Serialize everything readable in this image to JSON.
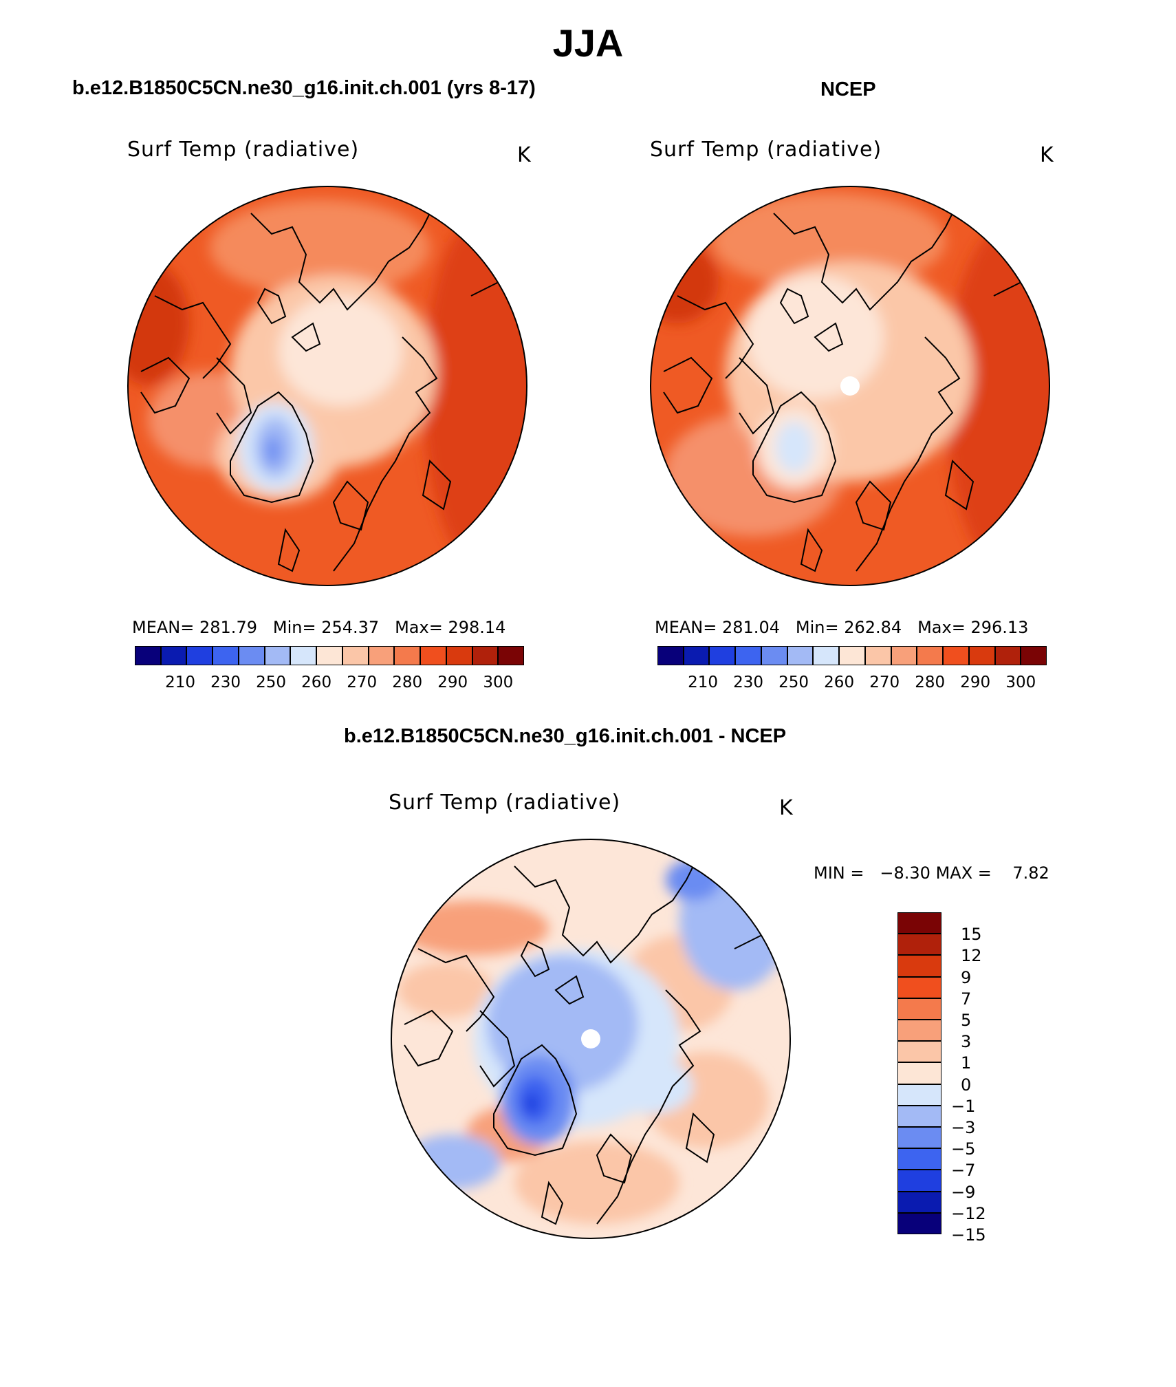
{
  "figure": {
    "season": "JJA",
    "model_title": "b.e12.B1850C5CN.ne30_g16.init.ch.001 (yrs 8-17)",
    "obs_title": "NCEP",
    "diff_title": "b.e12.B1850C5CN.ne30_g16.init.ch.001 - NCEP"
  },
  "panels": [
    {
      "id": "model",
      "variable": "Surf Temp (radiative)",
      "units": "K",
      "mean_label": "MEAN=",
      "mean": "281.79",
      "min_label": "Min=",
      "min": "254.37",
      "max_label": "Max=",
      "max": "298.14"
    },
    {
      "id": "obs",
      "variable": "Surf Temp (radiative)",
      "units": "K",
      "mean_label": "MEAN=",
      "mean": "281.04",
      "min_label": "Min=",
      "min": "262.84",
      "max_label": "Max=",
      "max": "296.13"
    },
    {
      "id": "diff",
      "variable": "Surf Temp (radiative)",
      "units": "K",
      "min_label": "MIN =",
      "min": "−8.30",
      "max_label": "MAX =",
      "max": "7.82"
    }
  ],
  "colorbar_abs": {
    "colors": [
      "#08007a",
      "#0a1bb0",
      "#1f3fe0",
      "#3d64f0",
      "#6b8cf2",
      "#a3baf5",
      "#d6e6fb",
      "#fde6d6",
      "#fbc6a8",
      "#f8a07a",
      "#f47a4c",
      "#f04f1e",
      "#d93a0e",
      "#b0210b",
      "#7a0405"
    ],
    "ticks": [
      "210",
      "230",
      "250",
      "260",
      "270",
      "280",
      "290",
      "300"
    ]
  },
  "colorbar_diff": {
    "colors": [
      "#08007a",
      "#0a1bb0",
      "#1f3fe0",
      "#3d64f0",
      "#6b8cf2",
      "#a3baf5",
      "#d6e6fb",
      "#fde6d6",
      "#fbc6a8",
      "#f8a07a",
      "#f47a4c",
      "#f04f1e",
      "#d93a0e",
      "#b0210b",
      "#7a0405"
    ],
    "ticks": [
      "15",
      "12",
      "9",
      "7",
      "5",
      "3",
      "1",
      "0",
      "−1",
      "−3",
      "−5",
      "−7",
      "−9",
      "−12",
      "−15"
    ]
  }
}
